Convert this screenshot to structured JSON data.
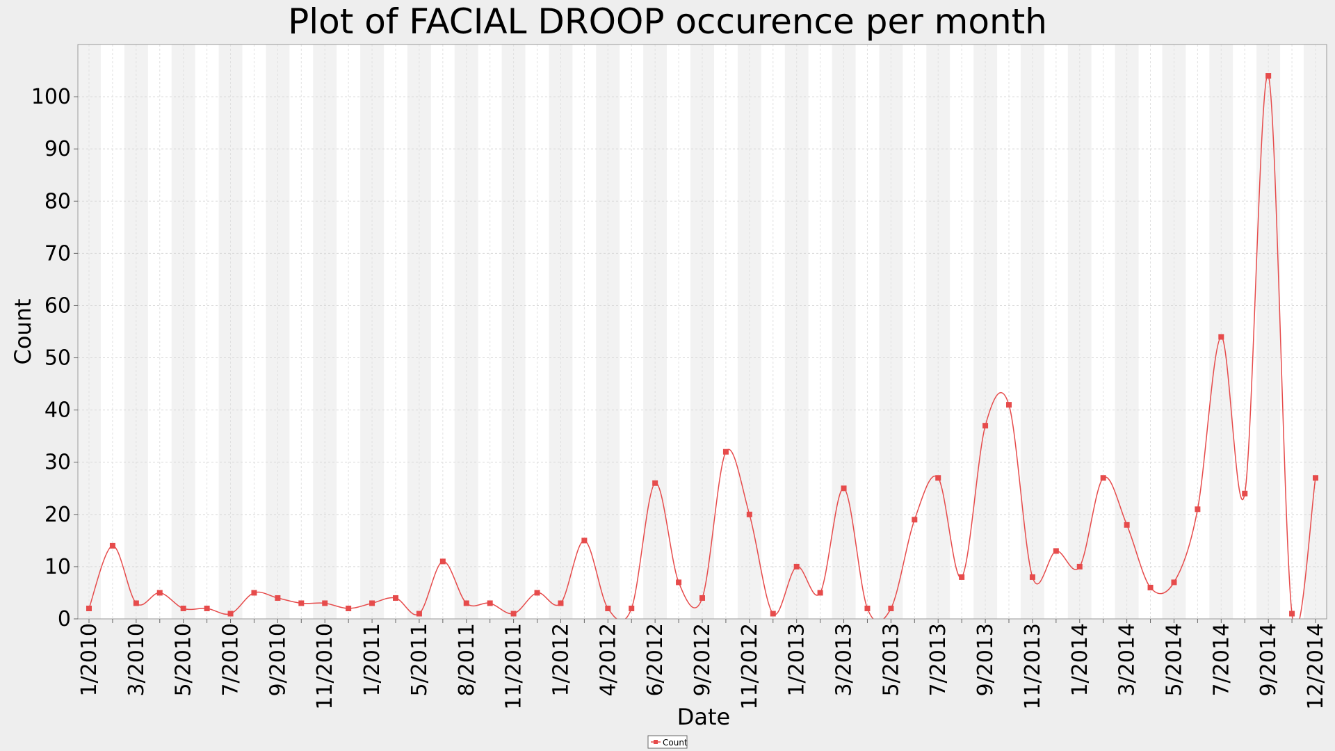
{
  "chart_data": {
    "type": "line",
    "title": "Plot of FACIAL DROOP occurence per month",
    "xlabel": "Date",
    "ylabel": "Count",
    "ylim": [
      0,
      110
    ],
    "y_ticks": [
      0,
      10,
      20,
      30,
      40,
      50,
      60,
      70,
      80,
      90,
      100
    ],
    "grid": true,
    "legend": {
      "placement": "bottom-center",
      "entries": [
        "Count"
      ]
    },
    "x_tick_labels": [
      "1/2010",
      "3/2010",
      "5/2010",
      "7/2010",
      "9/2010",
      "11/2010",
      "1/2011",
      "5/2011",
      "8/2011",
      "11/2011",
      "1/2012",
      "4/2012",
      "6/2012",
      "9/2012",
      "11/2012",
      "1/2013",
      "3/2013",
      "5/2013",
      "7/2013",
      "9/2013",
      "11/2013",
      "1/2014",
      "3/2014",
      "5/2014",
      "7/2014",
      "9/2014",
      "12/2014"
    ],
    "x_tick_positions": [
      0,
      2,
      4,
      6,
      8,
      10,
      12,
      14,
      16,
      18,
      20,
      22,
      24,
      26,
      28,
      30,
      32,
      34,
      36,
      38,
      40,
      42,
      44,
      46,
      48,
      50,
      52
    ],
    "series": [
      {
        "name": "Count",
        "color": "#e64b4b",
        "values": [
          2,
          14,
          3,
          5,
          2,
          2,
          1,
          5,
          4,
          3,
          3,
          2,
          3,
          4,
          1,
          11,
          3,
          3,
          1,
          5,
          3,
          15,
          2,
          2,
          26,
          7,
          4,
          32,
          20,
          1,
          10,
          5,
          25,
          2,
          2,
          19,
          27,
          8,
          37,
          41,
          8,
          13,
          10,
          27,
          18,
          6,
          7,
          21,
          54,
          24,
          104,
          1,
          27
        ]
      }
    ]
  }
}
